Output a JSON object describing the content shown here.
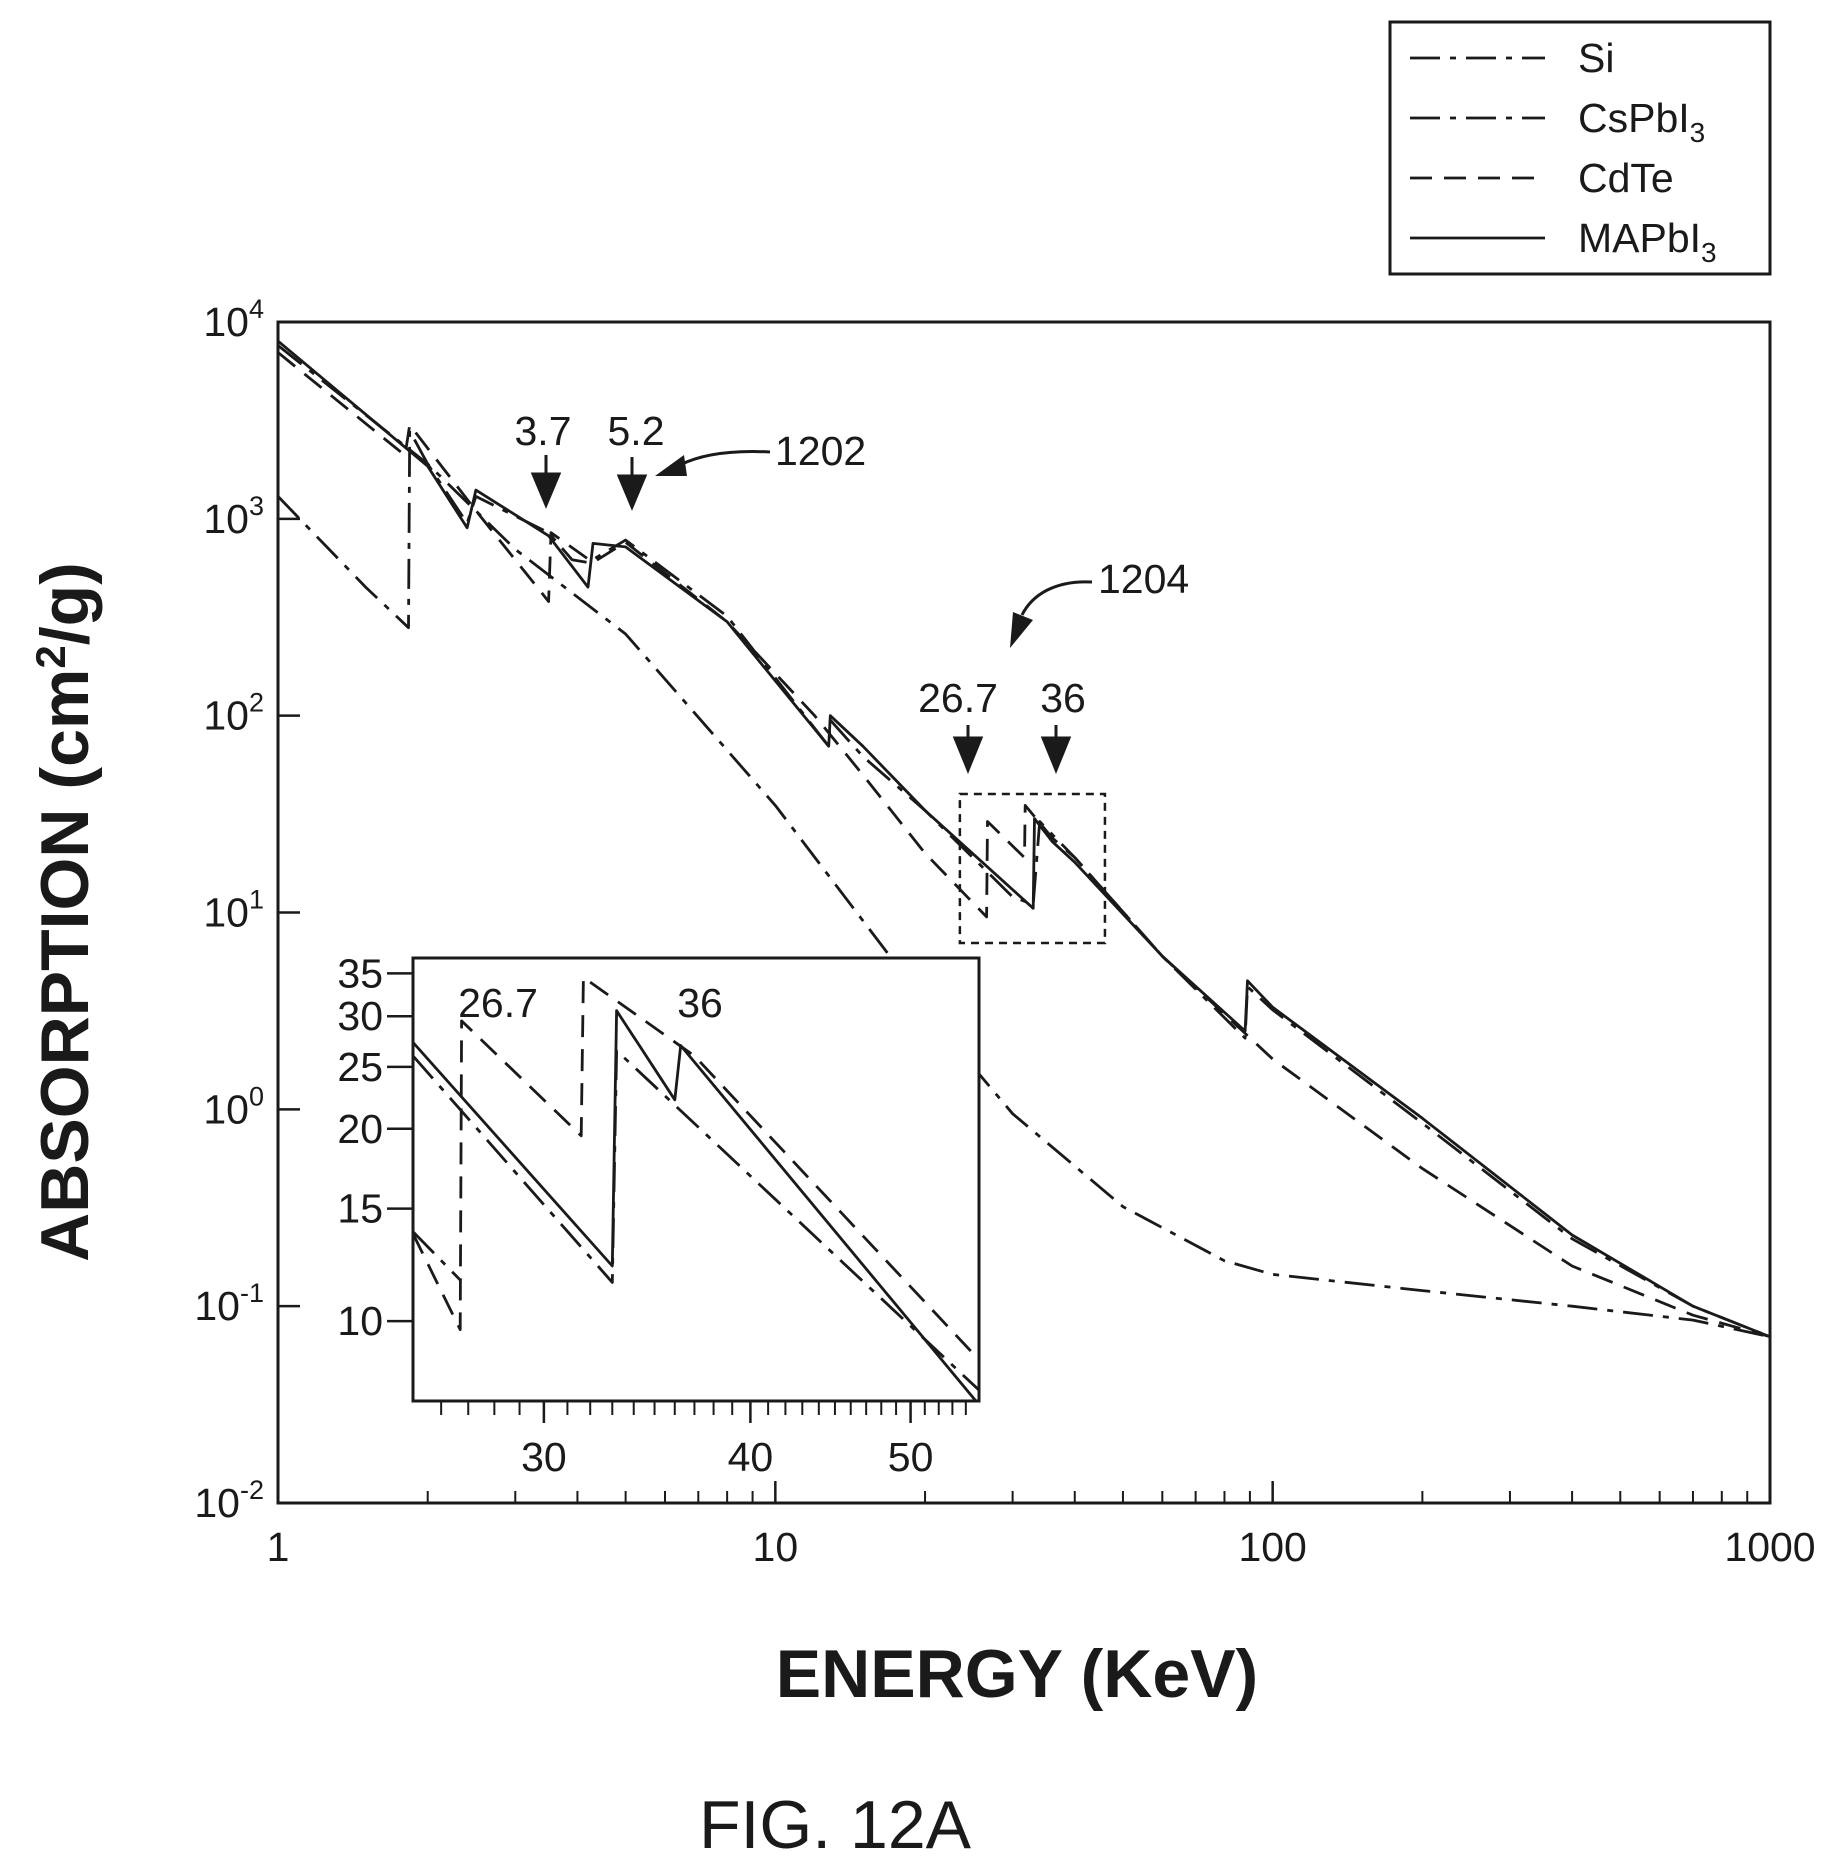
{
  "figure_label": "FIG. 12A",
  "chart_data": [
    {
      "type": "line",
      "x_scale": "log",
      "y_scale": "log",
      "xlabel": "ENERGY (KeV)",
      "ylabel_main": "ABSORPTION (cm",
      "ylabel_sup": "2",
      "ylabel_end": "/g)",
      "xlim": [
        1,
        1000
      ],
      "ylim": [
        0.01,
        10000
      ],
      "x_ticks": [
        1,
        10,
        100,
        1000
      ],
      "x_tick_labels": [
        "1",
        "10",
        "100",
        "1000"
      ],
      "y_ticks": [
        {
          "value": 10000,
          "base": "10",
          "exp": "4"
        },
        {
          "value": 1000,
          "base": "10",
          "exp": "3"
        },
        {
          "value": 100,
          "base": "10",
          "exp": "2"
        },
        {
          "value": 10,
          "base": "10",
          "exp": "1"
        },
        {
          "value": 1,
          "base": "10",
          "exp": "0"
        },
        {
          "value": 0.1,
          "base": "10",
          "exp": "-1"
        },
        {
          "value": 0.01,
          "base": "10",
          "exp": "-2"
        }
      ],
      "legend": {
        "position": "top-right",
        "entries": [
          {
            "label": "Si",
            "sub": "",
            "style": "dash-dot"
          },
          {
            "label": "CsPbI",
            "sub": "3",
            "style": "dash-dot"
          },
          {
            "label": "CdTe",
            "sub": "",
            "style": "dashed"
          },
          {
            "label": "MAPbI",
            "sub": "3",
            "style": "solid"
          }
        ]
      },
      "series": [
        {
          "name": "Si",
          "style": "dash-dot",
          "x": [
            1,
            1.5,
            1.83,
            1.84,
            2,
            3,
            5,
            10,
            17,
            20,
            30,
            50,
            80,
            100,
            200,
            400,
            700,
            1000
          ],
          "y": [
            1300,
            450,
            280,
            2800,
            1900,
            700,
            260,
            35,
            6,
            3.2,
            0.95,
            0.32,
            0.17,
            0.145,
            0.12,
            0.1,
            0.085,
            0.07
          ]
        },
        {
          "name": "CsPbI3",
          "style": "dash-dot",
          "x": [
            1,
            2,
            2.4,
            2.5,
            3.5,
            3.9,
            4.2,
            5,
            8,
            12.8,
            12.9,
            15,
            20,
            30,
            33,
            34,
            36,
            40,
            60,
            88,
            89,
            100,
            200,
            400,
            700,
            1000
          ],
          "y": [
            7600,
            1900,
            950,
            1300,
            850,
            620,
            600,
            780,
            320,
            70,
            95,
            62,
            33,
            12,
            11,
            29,
            25,
            19,
            6,
            2.3,
            4.2,
            3.2,
            0.85,
            0.22,
            0.1,
            0.07
          ]
        },
        {
          "name": "CdTe",
          "style": "dashed",
          "x": [
            1,
            1.8,
            1.84,
            2.5,
            3.5,
            3.54,
            4.3,
            5,
            8,
            12,
            15,
            20,
            26.6,
            26.7,
            31.7,
            31.8,
            36,
            40,
            60,
            100,
            200,
            400,
            700,
            1000
          ],
          "y": [
            7000,
            2100,
            3000,
            1100,
            380,
            850,
            600,
            760,
            300,
            100,
            50,
            20,
            9.5,
            29,
            19,
            35,
            24,
            19,
            6,
            1.8,
            0.5,
            0.16,
            0.09,
            0.07
          ]
        },
        {
          "name": "MAPbI3",
          "style": "solid",
          "x": [
            1,
            2,
            2.4,
            2.5,
            3.5,
            4.2,
            4.3,
            5,
            8,
            12.8,
            12.9,
            15,
            20,
            33,
            33.2,
            36,
            40,
            60,
            88,
            89,
            100,
            200,
            400,
            700,
            1000
          ],
          "y": [
            8000,
            1850,
            900,
            1400,
            820,
            450,
            750,
            720,
            300,
            70,
            100,
            70,
            33,
            10.5,
            30,
            23,
            18,
            6,
            2.5,
            4.5,
            3.3,
            0.9,
            0.23,
            0.1,
            0.07
          ]
        }
      ],
      "annotations": [
        {
          "id": "edge-3-7",
          "label": "3.7",
          "x": 3.7
        },
        {
          "id": "edge-5-2",
          "label": "5.2",
          "x": 5.2
        },
        {
          "id": "callout-1202",
          "label": "1202"
        },
        {
          "id": "edge-26-7",
          "label": "26.7",
          "x": 26.7
        },
        {
          "id": "edge-36",
          "label": "36",
          "x": 36
        },
        {
          "id": "callout-1204",
          "label": "1204"
        }
      ],
      "inset_region": {
        "xlim": [
          23.5,
          46
        ],
        "ylim": [
          7,
          40
        ]
      }
    },
    {
      "type": "line",
      "role": "inset",
      "x_scale": "log",
      "y_scale": "log",
      "xlim": [
        25,
        55
      ],
      "ylim": [
        7.5,
        37
      ],
      "x_ticks": [
        30,
        40,
        50
      ],
      "x_tick_labels": [
        "30",
        "40",
        "50"
      ],
      "x_minor_ticks": [
        26,
        27,
        28,
        29,
        31,
        32,
        33,
        34,
        35,
        36,
        37,
        38,
        39,
        41,
        42,
        43,
        44,
        45,
        46,
        47,
        48,
        49,
        51,
        52,
        53,
        54
      ],
      "y_ticks": [
        10,
        15,
        20,
        25,
        30,
        35
      ],
      "y_tick_labels": [
        "10",
        "15",
        "20",
        "25",
        "30",
        "35"
      ],
      "series": [
        {
          "name": "Si",
          "style": "dash-dot",
          "x": [
            25,
            26.7
          ],
          "y": [
            13.8,
            11.6
          ]
        },
        {
          "name": "CsPbI3",
          "style": "dash-dot",
          "x": [
            25,
            33,
            33.2,
            55
          ],
          "y": [
            26,
            11.5,
            26.5,
            7.8
          ]
        },
        {
          "name": "CdTe",
          "style": "dashed",
          "x": [
            25,
            26.7,
            26.75,
            31.6,
            31.7,
            37,
            55
          ],
          "y": [
            13.7,
            9.7,
            29.5,
            19.5,
            34.5,
            26,
            8.7
          ]
        },
        {
          "name": "MAPbI3",
          "style": "solid",
          "x": [
            25,
            33,
            33.2,
            36,
            36.3,
            55
          ],
          "y": [
            27.3,
            12.2,
            30.6,
            22.2,
            27,
            7.4
          ]
        }
      ],
      "annotations": [
        {
          "id": "inset-edge-26-7",
          "label": "26.7"
        },
        {
          "id": "inset-edge-36",
          "label": "36"
        }
      ]
    }
  ]
}
